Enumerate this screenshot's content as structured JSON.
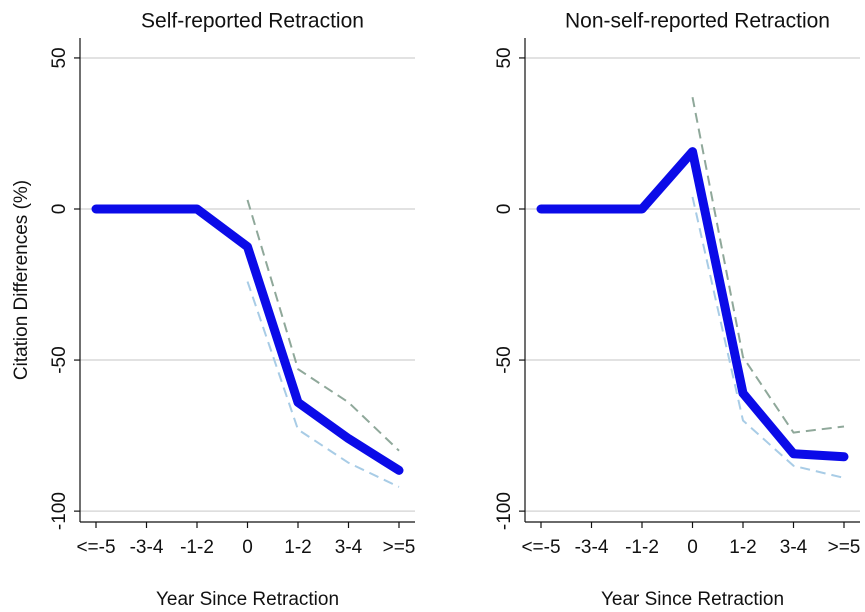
{
  "chart_data": [
    {
      "type": "line",
      "title": "Self-reported Retraction",
      "x_label": "Year Since Retraction",
      "y_label": "Citation Differences (%)",
      "categories": [
        "<=-5",
        "-3-4",
        "-1-2",
        "0",
        "1-2",
        "3-4",
        ">=5"
      ],
      "ylim": [
        -103.6,
        56.6
      ],
      "yticks": [
        -100,
        -50,
        0,
        50
      ],
      "grid": true,
      "series": [
        {
          "color": "#8fa89a",
          "dashed": true,
          "line_width": 2,
          "values": [
            null,
            null,
            null,
            3,
            -53,
            -64,
            -80
          ]
        },
        {
          "color": "#a8cce6",
          "dashed": true,
          "line_width": 2,
          "values": [
            null,
            null,
            null,
            -24,
            -73,
            -84,
            -92
          ]
        },
        {
          "color": "#0b0be8",
          "dashed": false,
          "line_width": 9,
          "values": [
            0,
            0,
            0,
            -12.5,
            -64,
            -76,
            -86.5
          ]
        }
      ]
    },
    {
      "type": "line",
      "title": "Non-self-reported Retraction",
      "x_label": "Year Since Retraction",
      "categories": [
        "<=-5",
        "-3-4",
        "-1-2",
        "0",
        "1-2",
        "3-4",
        ">=5"
      ],
      "ylim": [
        -103.6,
        56.6
      ],
      "yticks": [
        -100,
        -50,
        0,
        50
      ],
      "grid": true,
      "series": [
        {
          "color": "#8fa89a",
          "dashed": true,
          "line_width": 2,
          "values": [
            null,
            null,
            null,
            37,
            -49,
            -74,
            -72
          ]
        },
        {
          "color": "#a8cce6",
          "dashed": true,
          "line_width": 2,
          "values": [
            null,
            null,
            null,
            4,
            -70,
            -85,
            -89
          ]
        },
        {
          "color": "#0b0be8",
          "dashed": false,
          "line_width": 9,
          "values": [
            0,
            0,
            0,
            19,
            -61,
            -81,
            -82
          ]
        }
      ]
    }
  ]
}
